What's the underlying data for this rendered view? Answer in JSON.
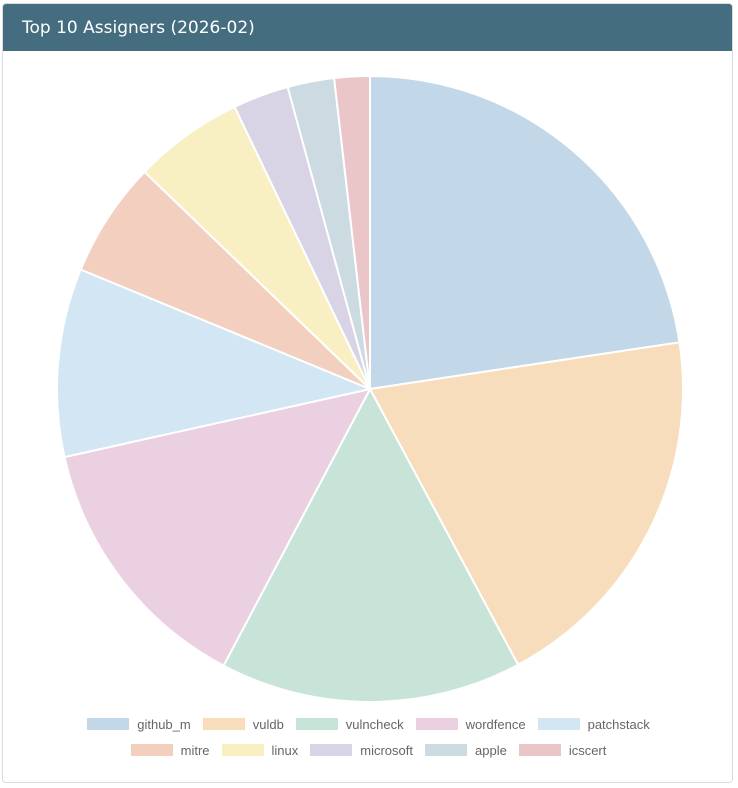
{
  "panel": {
    "title": "Top 10 Assigners (2026-02)"
  },
  "chart_data": {
    "type": "pie",
    "title": "",
    "categories": [
      "github_m",
      "vuldb",
      "vulncheck",
      "wordfence",
      "patchstack",
      "mitre",
      "linux",
      "microsoft",
      "apple",
      "icscert"
    ],
    "values": [
      23.5,
      20.3,
      16.2,
      14.3,
      10.1,
      6.2,
      5.9,
      3.0,
      2.5,
      1.9
    ],
    "colors": [
      "#c2d8e8",
      "#f8ddbc",
      "#c8e4d9",
      "#ebd0e2",
      "#d3e6f3",
      "#f3cfc0",
      "#f8f0c3",
      "#d8d4e5",
      "#cbdbe1",
      "#eac6c9"
    ],
    "legend_position": "bottom"
  }
}
